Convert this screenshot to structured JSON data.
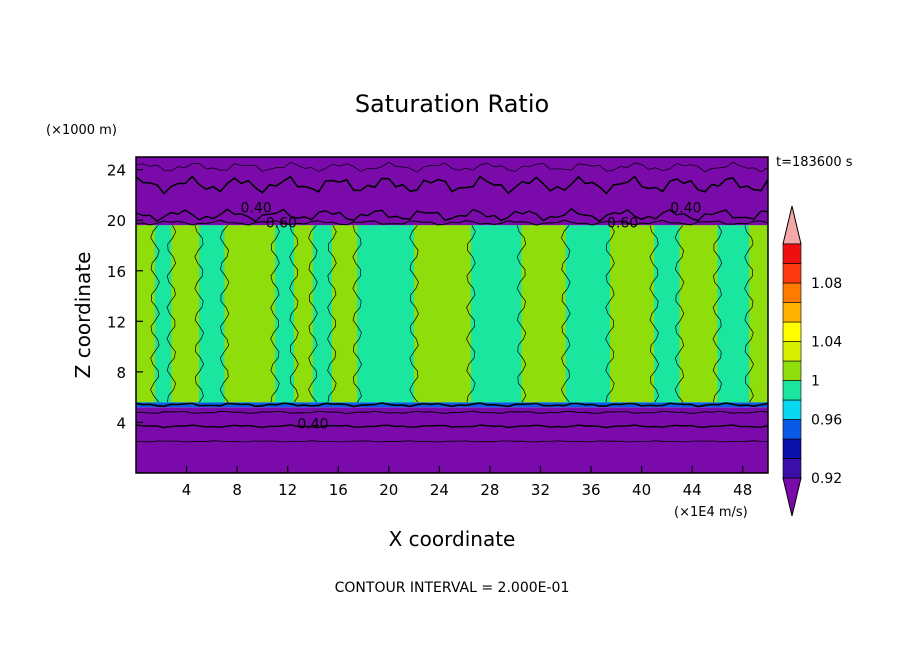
{
  "chart_data": {
    "type": "heatmap",
    "title": "Saturation Ratio",
    "xlabel": "X coordinate",
    "ylabel": "Z coordinate",
    "x_unit": "(×1E4 m/s)",
    "y_unit": "(×1000 m)",
    "time_label": "t=183600 s",
    "footer": "CONTOUR INTERVAL = 2.000E-01",
    "xlim": [
      0,
      50
    ],
    "ylim": [
      0,
      25
    ],
    "x_ticks": [
      "4",
      "8",
      "12",
      "16",
      "20",
      "24",
      "28",
      "32",
      "36",
      "40",
      "44",
      "48"
    ],
    "x_tick_values": [
      4,
      8,
      12,
      16,
      20,
      24,
      28,
      32,
      36,
      40,
      44,
      48
    ],
    "y_ticks": [
      "4",
      "8",
      "12",
      "16",
      "20",
      "24"
    ],
    "y_tick_values": [
      4,
      8,
      12,
      16,
      20,
      24
    ],
    "contour_labels": [
      {
        "text": "0.40",
        "x": 9.5,
        "z": 21.0
      },
      {
        "text": "0.60",
        "x": 11.5,
        "z": 19.8
      },
      {
        "text": "0.40",
        "x": 43.5,
        "z": 21.0
      },
      {
        "text": "0.60",
        "x": 38.5,
        "z": 19.8
      },
      {
        "text": "0.40",
        "x": 14.0,
        "z": 3.9
      }
    ],
    "bands": [
      {
        "z0": 0,
        "z1": 5.2,
        "level": "<0.92"
      },
      {
        "z0": 5.2,
        "z1": 5.6,
        "level": "0.92-0.96"
      },
      {
        "z0": 5.6,
        "z1": 19.6,
        "level": "0.98-1.02"
      },
      {
        "z0": 19.6,
        "z1": 25,
        "level": "<0.92"
      }
    ],
    "columns": [
      {
        "x0": 0.0,
        "x1": 1.5,
        "level": "1-1.02"
      },
      {
        "x0": 1.5,
        "x1": 2.8,
        "level": "0.98-1"
      },
      {
        "x0": 2.8,
        "x1": 5.0,
        "level": "1-1.02"
      },
      {
        "x0": 5.0,
        "x1": 7.0,
        "level": "0.98-1"
      },
      {
        "x0": 7.0,
        "x1": 11.0,
        "level": "1-1.02"
      },
      {
        "x0": 11.0,
        "x1": 12.5,
        "level": "0.98-1"
      },
      {
        "x0": 12.5,
        "x1": 14.0,
        "level": "1-1.02"
      },
      {
        "x0": 14.0,
        "x1": 15.5,
        "level": "0.98-1"
      },
      {
        "x0": 15.5,
        "x1": 17.5,
        "level": "1-1.02"
      },
      {
        "x0": 17.5,
        "x1": 22.0,
        "level": "0.98-1"
      },
      {
        "x0": 22.0,
        "x1": 26.5,
        "level": "1-1.02"
      },
      {
        "x0": 26.5,
        "x1": 30.5,
        "level": "0.98-1"
      },
      {
        "x0": 30.5,
        "x1": 34.0,
        "level": "1-1.02"
      },
      {
        "x0": 34.0,
        "x1": 37.5,
        "level": "0.98-1"
      },
      {
        "x0": 37.5,
        "x1": 41.0,
        "level": "1-1.02"
      },
      {
        "x0": 41.0,
        "x1": 43.0,
        "level": "0.98-1"
      },
      {
        "x0": 43.0,
        "x1": 46.0,
        "level": "1-1.02"
      },
      {
        "x0": 46.0,
        "x1": 48.5,
        "level": "0.98-1"
      },
      {
        "x0": 48.5,
        "x1": 50.0,
        "level": "1-1.02"
      }
    ],
    "colorbar": {
      "levels": [
        {
          "label": "",
          "color": "#7a0aaa"
        },
        {
          "label": "0.92",
          "color": "#3a0fa8"
        },
        {
          "label": "",
          "color": "#0a10a8"
        },
        {
          "label": "",
          "color": "#0a5ae8"
        },
        {
          "label": "0.96",
          "color": "#0ad8f0"
        },
        {
          "label": "",
          "color": "#1ae6a0"
        },
        {
          "label": "1",
          "color": "#8fdd0a"
        },
        {
          "label": "",
          "color": "#d8f000"
        },
        {
          "label": "1.04",
          "color": "#ffff00"
        },
        {
          "label": "",
          "color": "#ffb000"
        },
        {
          "label": "",
          "color": "#ff7a00"
        },
        {
          "label": "1.08",
          "color": "#ff3a10"
        },
        {
          "label": "",
          "color": "#ee1010"
        },
        {
          "label": "",
          "color": "#f4a8a8"
        }
      ]
    },
    "colors": {
      "low": "#7a0aaa",
      "green": "#1ae6a0",
      "lime": "#8fdd0a",
      "thin_blue": "#0a5ae8"
    }
  }
}
